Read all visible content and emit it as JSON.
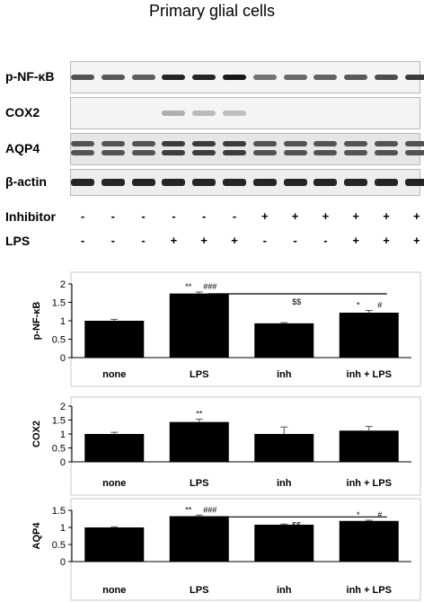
{
  "figure_title": "Primary glial cells",
  "blot": {
    "rows": [
      {
        "label": "p-NF-κB",
        "intensities": [
          0.75,
          0.72,
          0.7,
          0.95,
          0.95,
          1.0,
          0.6,
          0.65,
          0.68,
          0.72,
          0.78,
          0.85
        ]
      },
      {
        "label": "COX2",
        "intensities": [
          0,
          0,
          0,
          0.35,
          0.3,
          0.28,
          0,
          0,
          0,
          0,
          0,
          0
        ]
      },
      {
        "label": "AQP4",
        "intensities": [
          0.75,
          0.75,
          0.75,
          0.85,
          0.85,
          0.85,
          0.75,
          0.75,
          0.75,
          0.75,
          0.75,
          0.75
        ]
      },
      {
        "label": "β-actin",
        "intensities": [
          0.95,
          0.95,
          0.95,
          0.95,
          0.95,
          0.95,
          0.95,
          0.95,
          0.95,
          0.95,
          0.95,
          0.95
        ]
      }
    ],
    "conditions": [
      {
        "label": "Inhibitor",
        "signs": [
          "-",
          "-",
          "-",
          "-",
          "-",
          "-",
          "+",
          "+",
          "+",
          "+",
          "+",
          "+"
        ]
      },
      {
        "label": "LPS",
        "signs": [
          "-",
          "-",
          "-",
          "+",
          "+",
          "+",
          "-",
          "-",
          "-",
          "+",
          "+",
          "+"
        ]
      }
    ]
  },
  "chart_data": [
    {
      "type": "bar",
      "categories": [
        "none",
        "LPS",
        "inh",
        "inh + LPS"
      ],
      "values": [
        1.0,
        1.74,
        0.93,
        1.22
      ],
      "errors": [
        0.04,
        0.04,
        0.02,
        0.06
      ],
      "ylabel": "p-NF-κB",
      "ylim": [
        0,
        2
      ],
      "yticks": [
        "0",
        "0.5",
        "1",
        "1.5",
        "2"
      ],
      "annotations": [
        {
          "category": 1,
          "text": "**",
          "offset": -1
        },
        {
          "category": 1,
          "text": "###",
          "offset": 1
        },
        {
          "category": 3,
          "text": "*",
          "offset": -1
        },
        {
          "category": 3,
          "text": "#",
          "offset": 1
        }
      ],
      "comparison": {
        "from": 1,
        "to": 3,
        "text": "$$"
      }
    },
    {
      "type": "bar",
      "categories": [
        "none",
        "LPS",
        "inh",
        "inh + LPS"
      ],
      "values": [
        1.0,
        1.43,
        1.0,
        1.12
      ],
      "errors": [
        0.06,
        0.1,
        0.25,
        0.15
      ],
      "ylabel": "COX2",
      "ylim": [
        0,
        2
      ],
      "yticks": [
        "0",
        "0.5",
        "1",
        "1.5",
        "2"
      ],
      "annotations": [
        {
          "category": 1,
          "text": "**",
          "offset": 0
        }
      ]
    },
    {
      "type": "bar",
      "categories": [
        "none",
        "LPS",
        "inh",
        "inh + LPS"
      ],
      "values": [
        1.0,
        1.33,
        1.08,
        1.19
      ],
      "errors": [
        0.02,
        0.03,
        0.02,
        0.02
      ],
      "ylabel": "AQP4",
      "ylim": [
        0,
        1.5
      ],
      "yticks": [
        "0",
        "0.5",
        "1",
        "1.5"
      ],
      "annotations": [
        {
          "category": 1,
          "text": "**",
          "offset": -1
        },
        {
          "category": 1,
          "text": "###",
          "offset": 1
        },
        {
          "category": 3,
          "text": "*",
          "offset": -1
        },
        {
          "category": 3,
          "text": "#",
          "offset": 1
        }
      ],
      "comparison": {
        "from": 1,
        "to": 3,
        "text": "$$"
      }
    }
  ]
}
